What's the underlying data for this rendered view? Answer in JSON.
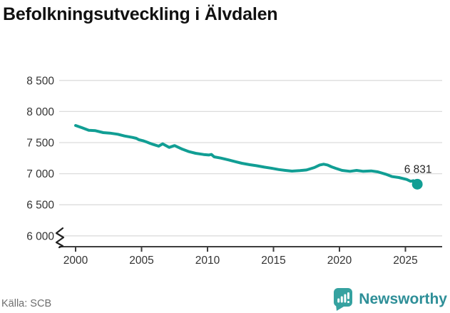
{
  "header": {
    "title": "Befolkningsutveckling i Älvdalen"
  },
  "footer": {
    "source": "Källa: SCB",
    "brand": "Newsworthy"
  },
  "icons": {
    "logo": "bar-chart-speech-bubble-icon"
  },
  "colors": {
    "line": "#119e94",
    "grid": "#dcdcdc",
    "axis": "#3d3d3d",
    "tick_text": "#333333",
    "title_text": "#111111",
    "source_text": "#6e6e6e",
    "logo_icon": "#35a2a0",
    "logo_text": "#2e8f98",
    "annotation_text": "#222222"
  },
  "chart_data": {
    "type": "line",
    "title": "Befolkningsutveckling i Älvdalen",
    "xlabel": "",
    "ylabel": "",
    "x_ticks": [
      2000,
      2005,
      2010,
      2015,
      2020,
      2025
    ],
    "y_ticks": [
      8500,
      8000,
      7500,
      7000,
      6500,
      6000
    ],
    "y_tick_labels": [
      "8 500",
      "8 000",
      "7 500",
      "7 000",
      "6 500",
      "6 000"
    ],
    "xlim": [
      1998.8,
      2027.8
    ],
    "ylim_values": [
      6000,
      8500
    ],
    "axis_break_at_bottom": true,
    "grid": "horizontal-only",
    "legend": "none",
    "series": [
      {
        "name": "Befolkning",
        "color": "#119e94",
        "points": [
          [
            2000.0,
            7775
          ],
          [
            2000.5,
            7737
          ],
          [
            2001.0,
            7698
          ],
          [
            2001.5,
            7692
          ],
          [
            2002.1,
            7661
          ],
          [
            2002.6,
            7653
          ],
          [
            2003.2,
            7634
          ],
          [
            2003.7,
            7607
          ],
          [
            2004.3,
            7584
          ],
          [
            2004.6,
            7569
          ],
          [
            2004.8,
            7546
          ],
          [
            2005.1,
            7531
          ],
          [
            2005.4,
            7508
          ],
          [
            2005.6,
            7492
          ],
          [
            2005.9,
            7469
          ],
          [
            2006.3,
            7443
          ],
          [
            2006.6,
            7480
          ],
          [
            2007.1,
            7423
          ],
          [
            2007.5,
            7452
          ],
          [
            2008.1,
            7393
          ],
          [
            2008.6,
            7354
          ],
          [
            2009.1,
            7328
          ],
          [
            2009.7,
            7308
          ],
          [
            2010.1,
            7300
          ],
          [
            2010.3,
            7310
          ],
          [
            2010.5,
            7271
          ],
          [
            2011.0,
            7251
          ],
          [
            2011.6,
            7221
          ],
          [
            2012.1,
            7194
          ],
          [
            2012.6,
            7167
          ],
          [
            2013.2,
            7144
          ],
          [
            2013.7,
            7129
          ],
          [
            2014.3,
            7106
          ],
          [
            2014.8,
            7090
          ],
          [
            2015.4,
            7067
          ],
          [
            2015.9,
            7053
          ],
          [
            2016.4,
            7041
          ],
          [
            2017.0,
            7049
          ],
          [
            2017.5,
            7060
          ],
          [
            2018.1,
            7099
          ],
          [
            2018.5,
            7140
          ],
          [
            2018.8,
            7152
          ],
          [
            2019.1,
            7140
          ],
          [
            2019.4,
            7110
          ],
          [
            2019.7,
            7087
          ],
          [
            2020.2,
            7053
          ],
          [
            2020.8,
            7038
          ],
          [
            2021.3,
            7053
          ],
          [
            2021.8,
            7038
          ],
          [
            2022.4,
            7045
          ],
          [
            2022.9,
            7030
          ],
          [
            2023.5,
            6992
          ],
          [
            2024.0,
            6953
          ],
          [
            2024.5,
            6938
          ],
          [
            2025.1,
            6907
          ],
          [
            2025.4,
            6877
          ],
          [
            2025.6,
            6888
          ],
          [
            2025.9,
            6831
          ]
        ]
      }
    ],
    "end_annotation": {
      "label": "6 831",
      "x": 2025.9,
      "y": 6831
    }
  }
}
